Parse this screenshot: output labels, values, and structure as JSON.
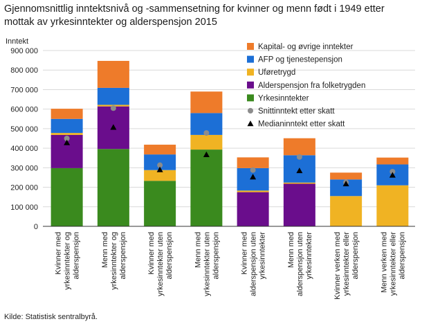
{
  "chart_data": {
    "type": "bar",
    "stacked": true,
    "title_lines": [
      "Gjennomsnittlig inntektsnivå og -sammensetning for kvinner og menn født i 1949 etter",
      "mottak av yrkesinntekter og alderspensjon 2015"
    ],
    "ylabel": "Inntekt",
    "ylim": [
      0,
      900000
    ],
    "yticks": [
      0,
      100000,
      200000,
      300000,
      400000,
      500000,
      600000,
      700000,
      800000,
      900000
    ],
    "ytick_labels": [
      "0",
      "100 000",
      "200 000",
      "300 000",
      "400 000",
      "500 000",
      "600 000",
      "700 000",
      "800 000",
      "900 000"
    ],
    "grid": true,
    "legend_placement": "top-right",
    "categories": [
      [
        "Kvinner med",
        "yrkesinntekter og",
        "alderspensjon"
      ],
      [
        "Menn med",
        "yrkesinntekter og",
        "alderspensjon"
      ],
      [
        "Kvinner med",
        "yrkesinntekter uten",
        "alderspensjon"
      ],
      [
        "Menn med",
        "yrkesinntekter uten",
        "alderspensjon"
      ],
      [
        "Kvinner med",
        "alderspensjon uten",
        "yrkesinntekter"
      ],
      [
        "Menn med",
        "alderspensjon uten",
        "yrkesinntekter"
      ],
      [
        "Kvinner verken med",
        "yrkesinntekter eller",
        "alderspensjon"
      ],
      [
        "Menn verken med",
        "yrkesinntekter eller",
        "alderspensjon"
      ]
    ],
    "series": [
      {
        "name": "Yrkesinntekter",
        "color": "#3a8a1e",
        "values": [
          298000,
          396000,
          233000,
          393000,
          0,
          0,
          0,
          0
        ]
      },
      {
        "name": "Alderspensjon fra folketrygden",
        "color": "#6a0d8c",
        "values": [
          170000,
          218000,
          0,
          0,
          175000,
          218000,
          0,
          0
        ]
      },
      {
        "name": "Uføretrygd",
        "color": "#f0b323",
        "values": [
          10000,
          8000,
          55000,
          75000,
          8000,
          6000,
          155000,
          210000
        ]
      },
      {
        "name": "AFP og tjenestepensjon",
        "color": "#1c6fd6",
        "values": [
          72000,
          87000,
          80000,
          112000,
          115000,
          140000,
          85000,
          107000
        ]
      },
      {
        "name": "Kapital- og øvrige inntekter",
        "color": "#ee7b2a",
        "values": [
          52000,
          138000,
          50000,
          110000,
          55000,
          87000,
          35000,
          35000
        ]
      }
    ],
    "markers": [
      {
        "name": "Snittinntekt etter skatt",
        "shape": "circle",
        "color": "#8c8c8c",
        "values": [
          450000,
          605000,
          313000,
          478000,
          288000,
          355000,
          225000,
          280000
        ]
      },
      {
        "name": "Medianinntekt etter skatt",
        "shape": "triangle",
        "color": "#000000",
        "values": [
          428000,
          507000,
          290000,
          367000,
          253000,
          285000,
          218000,
          262000
        ]
      }
    ],
    "legend_order": [
      "Kapital- og øvrige inntekter",
      "AFP og tjenestepensjon",
      "Uføretrygd",
      "Alderspensjon fra folketrygden",
      "Yrkesinntekter",
      "Snittinntekt etter skatt",
      "Medianinntekt etter skatt"
    ],
    "colors": {
      "grid": "#d9d9d9",
      "axis": "#333333"
    }
  },
  "source": "Kilde: Statistisk sentralbyrå."
}
